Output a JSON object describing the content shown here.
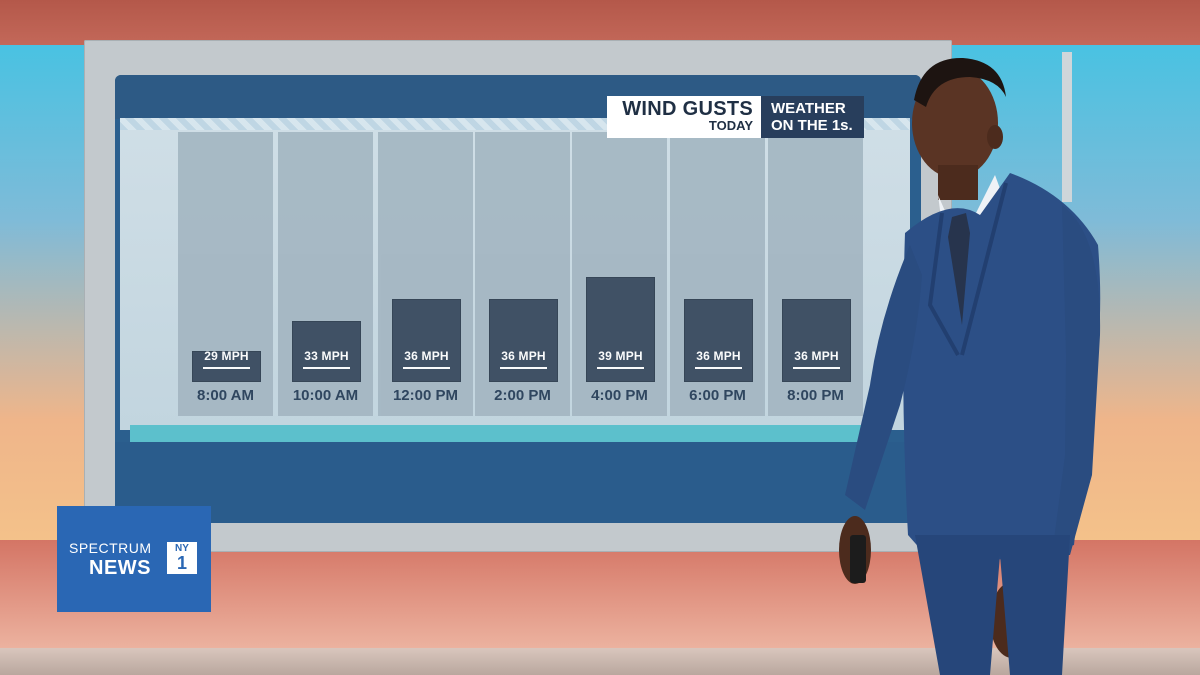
{
  "graphic": {
    "title_main": "WIND GUSTS",
    "title_sub": "TODAY",
    "brand_line1": "WEATHER",
    "brand_line2": "ON THE 1s."
  },
  "logo": {
    "line1": "SPECTRUM",
    "line2": "NEWS",
    "badge_top": "NY",
    "badge_num": "1"
  },
  "chart_data": {
    "type": "bar",
    "title": "WIND GUSTS",
    "subtitle": "TODAY",
    "categories": [
      "8:00 AM",
      "10:00 AM",
      "12:00 PM",
      "2:00 PM",
      "4:00 PM",
      "6:00 PM",
      "8:00 PM"
    ],
    "values": [
      29,
      33,
      36,
      36,
      39,
      36,
      36
    ],
    "labels": [
      "29 MPH",
      "33 MPH",
      "36 MPH",
      "36 MPH",
      "39 MPH",
      "36 MPH",
      "36 MPH"
    ],
    "unit": "MPH",
    "ylim": [
      25,
      40
    ],
    "grid": false,
    "legend": "none",
    "colors": {
      "bar": "#35465b",
      "card": "#a4b6c2",
      "label": "#233a55"
    }
  }
}
